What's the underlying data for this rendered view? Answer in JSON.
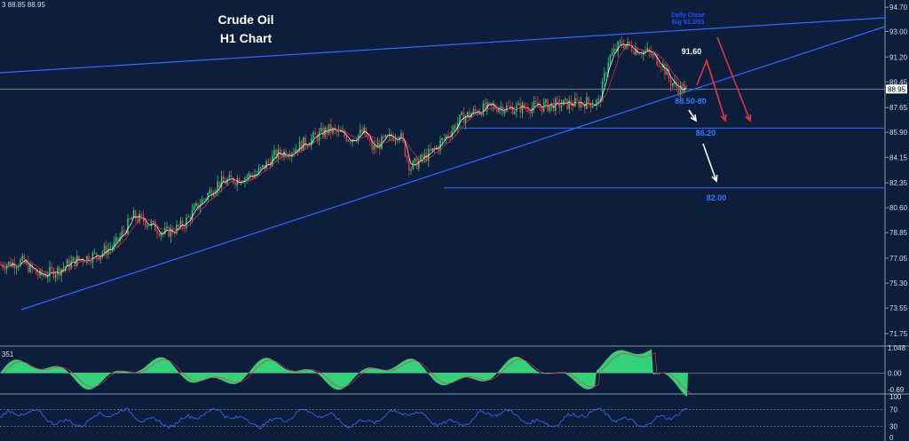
{
  "header_values": "3 88.85 88.95",
  "chart_data": {
    "type": "candlestick",
    "title": "Crude Oil",
    "subtitle": "H1 Chart",
    "ylim": [
      71.0,
      94.9
    ],
    "y_ticks": [
      "94.70",
      "93.00",
      "91.20",
      "89.45",
      "87.65",
      "85.90",
      "84.15",
      "82.35",
      "80.60",
      "78.85",
      "77.05",
      "75.30",
      "73.55",
      "71.75"
    ],
    "current_price": "88.95",
    "series": [
      {
        "name": "Price",
        "points": [
          [
            0,
            76.6
          ],
          [
            25,
            76.8
          ],
          [
            45,
            75.8
          ],
          [
            65,
            76.2
          ],
          [
            85,
            76.9
          ],
          [
            110,
            77.3
          ],
          [
            130,
            78.0
          ],
          [
            150,
            80.0
          ],
          [
            165,
            79.6
          ],
          [
            185,
            78.8
          ],
          [
            205,
            79.3
          ],
          [
            225,
            80.9
          ],
          [
            245,
            82.3
          ],
          [
            265,
            82.6
          ],
          [
            290,
            83.0
          ],
          [
            310,
            84.3
          ],
          [
            330,
            84.7
          ],
          [
            350,
            85.4
          ],
          [
            370,
            86.1
          ],
          [
            395,
            85.5
          ],
          [
            410,
            85.9
          ],
          [
            420,
            84.7
          ],
          [
            430,
            85.2
          ],
          [
            450,
            85.9
          ],
          [
            462,
            83.4
          ],
          [
            475,
            84.0
          ],
          [
            490,
            84.7
          ],
          [
            505,
            85.8
          ],
          [
            520,
            86.9
          ],
          [
            540,
            87.5
          ],
          [
            560,
            87.7
          ],
          [
            580,
            87.6
          ],
          [
            600,
            87.7
          ],
          [
            620,
            87.8
          ],
          [
            640,
            87.9
          ],
          [
            660,
            88.0
          ],
          [
            675,
            88.0
          ],
          [
            685,
            91.0
          ],
          [
            700,
            92.2
          ],
          [
            715,
            91.8
          ],
          [
            730,
            91.5
          ],
          [
            745,
            90.8
          ],
          [
            755,
            89.5
          ],
          [
            765,
            89.0
          ],
          [
            775,
            88.8
          ]
        ]
      }
    ],
    "indicators": {
      "macd_label": "351",
      "macd_ticks": [
        "1.048",
        "0.00",
        "-0.69"
      ],
      "rsi_ticks": [
        "100",
        "70",
        "30",
        "0"
      ]
    },
    "annotations": {
      "tiny_label_1": "Daily Close",
      "tiny_label_2": "Big 92.3/93",
      "level_91_60": "91.60",
      "level_88_50": "88.50-80",
      "level_86_20": "86.20",
      "level_82_00": "82.00"
    },
    "levels": {
      "support_1": 86.2,
      "support_2": 82.0,
      "current": 88.95
    }
  }
}
